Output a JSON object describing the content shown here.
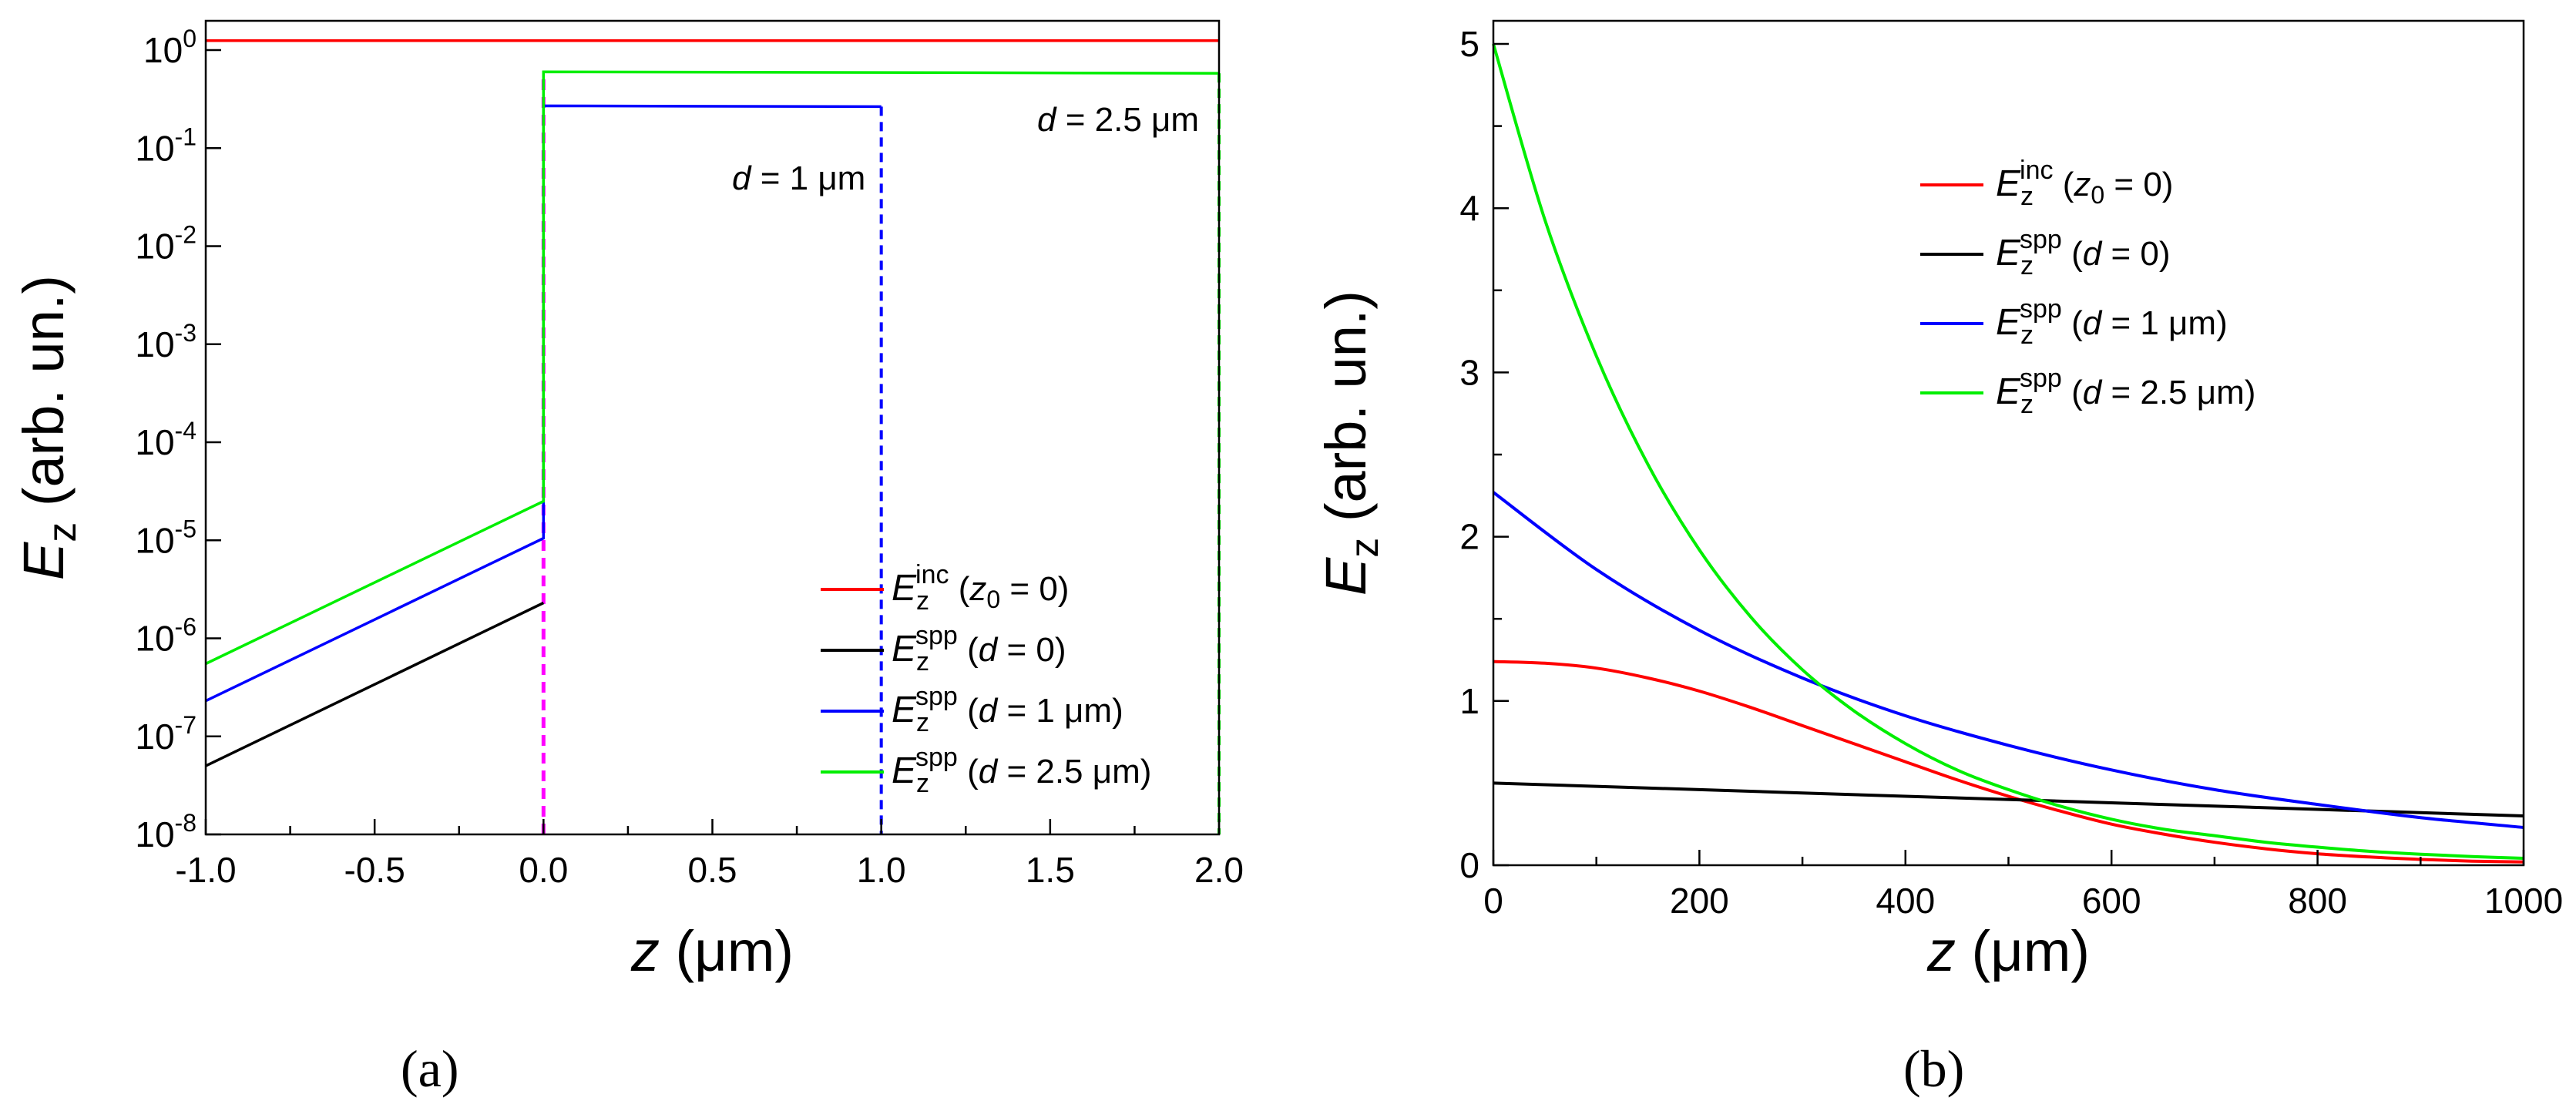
{
  "figure": {
    "panel_a_label": "(a)",
    "panel_b_label": "(b)"
  },
  "chart_data": [
    {
      "type": "line",
      "yscale": "log",
      "title": "",
      "xlabel": "z (μm)",
      "ylabel": "Ez (arb. un.)",
      "xlim": [
        -1.0,
        2.0
      ],
      "ylim": [
        1e-08,
        1
      ],
      "x_ticks": [
        "-1.0",
        "-0.5",
        "0.0",
        "0.5",
        "1.0",
        "1.5",
        "2.0"
      ],
      "y_ticks": [
        "10-8",
        "10-7",
        "10-6",
        "10-5",
        "10-4",
        "10-3",
        "10-2",
        "10-1",
        "100"
      ],
      "legend_position": "lower-right",
      "annotations": [
        "d = 1 μm",
        "d = 2.5 μm"
      ],
      "series": [
        {
          "name": "Ez inc (z0 = 0)",
          "color": "#ff0000",
          "x": [
            -1.0,
            2.0
          ],
          "y": [
            1.25,
            1.25
          ]
        },
        {
          "name": "Ez spp (d = 0)",
          "color": "#000000",
          "x": [
            -1.0,
            0.0
          ],
          "y": [
            5e-08,
            2.3e-06
          ]
        },
        {
          "name": "Ez spp (d = 1 μm)",
          "color": "#0000ff",
          "x": [
            -1.0,
            0.0,
            0.0,
            1.0
          ],
          "y": [
            2.3e-07,
            1.05e-05,
            0.27,
            0.265
          ],
          "drop_at": 1.0
        },
        {
          "name": "Ez spp (d = 2.5 μm)",
          "color": "#00ee00",
          "x": [
            -1.0,
            0.0,
            0.0,
            2.0
          ],
          "y": [
            5.5e-07,
            2.5e-05,
            0.6,
            0.58
          ],
          "drop_at": 2.0
        }
      ],
      "interface_line": {
        "x": 0.0,
        "color": "#ff00ff",
        "style": "dashed"
      }
    },
    {
      "type": "line",
      "title": "",
      "xlabel": "z (μm)",
      "ylabel": "Ez (arb. un.)",
      "xlim": [
        0,
        1000
      ],
      "ylim": [
        0,
        5
      ],
      "x_ticks": [
        "0",
        "200",
        "400",
        "600",
        "800",
        "1000"
      ],
      "y_ticks": [
        "0",
        "1",
        "2",
        "3",
        "4",
        "5"
      ],
      "legend_position": "top-center",
      "series": [
        {
          "name": "Ez inc (z0 = 0)",
          "color": "#ff0000",
          "x": [
            0,
            50,
            100,
            150,
            200,
            250,
            300,
            350,
            400,
            450,
            500,
            550,
            600,
            650,
            700,
            750,
            800,
            850,
            900,
            950,
            1000
          ],
          "y": [
            1.24,
            1.23,
            1.2,
            1.14,
            1.06,
            0.96,
            0.85,
            0.74,
            0.63,
            0.52,
            0.42,
            0.33,
            0.25,
            0.19,
            0.14,
            0.1,
            0.07,
            0.05,
            0.035,
            0.025,
            0.02
          ]
        },
        {
          "name": "Ez spp (d = 0)",
          "color": "#000000",
          "x": [
            0,
            200,
            400,
            600,
            800,
            1000
          ],
          "y": [
            0.5,
            0.46,
            0.42,
            0.38,
            0.34,
            0.3
          ]
        },
        {
          "name": "Ez spp (d = 1 μm)",
          "color": "#0000ff",
          "x": [
            0,
            100,
            200,
            300,
            400,
            500,
            600,
            700,
            800,
            900,
            1000
          ],
          "y": [
            2.27,
            1.8,
            1.43,
            1.14,
            0.91,
            0.73,
            0.58,
            0.46,
            0.37,
            0.29,
            0.23
          ]
        },
        {
          "name": "Ez spp (d = 2.5 μm)",
          "color": "#00ee00",
          "x": [
            0,
            50,
            100,
            150,
            200,
            250,
            300,
            350,
            400,
            450,
            500,
            550,
            600,
            650,
            700,
            750,
            800,
            850,
            900,
            950,
            1000
          ],
          "y": [
            5.0,
            3.93,
            3.1,
            2.44,
            1.92,
            1.51,
            1.19,
            0.94,
            0.74,
            0.58,
            0.46,
            0.36,
            0.28,
            0.22,
            0.18,
            0.14,
            0.11,
            0.085,
            0.067,
            0.053,
            0.042
          ]
        }
      ]
    }
  ]
}
